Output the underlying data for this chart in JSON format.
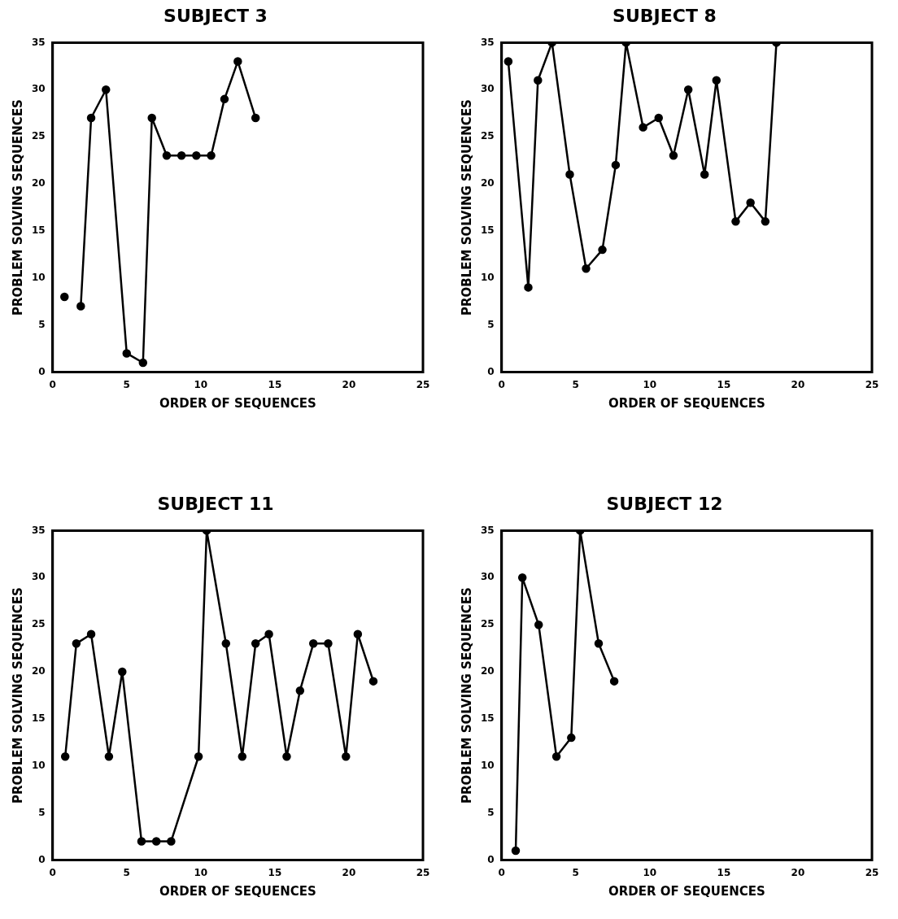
{
  "chart_data": [
    {
      "type": "line",
      "title": "SUBJECT 3",
      "xlabel": "ORDER OF SEQUENCES",
      "ylabel": "PROBLEM SOLVING SEQUENCES",
      "xlim": [
        0,
        25
      ],
      "xticks": [
        0,
        5,
        10,
        15,
        20,
        25
      ],
      "ylim": [
        0,
        35
      ],
      "yticks": [
        0,
        5,
        10,
        15,
        20,
        25,
        30,
        35
      ],
      "grid": false,
      "legend": false,
      "marker": "circle",
      "line_style": "solid",
      "series": [
        {
          "type": "scatter",
          "color": "#000000",
          "x": [
            0.8
          ],
          "values": [
            8
          ]
        },
        {
          "color": "#000000",
          "x": [
            1.9,
            2.6,
            3.6,
            5,
            6.1,
            6.7,
            7.7,
            8.7,
            9.7,
            10.7,
            11.6,
            12.5,
            13.7
          ],
          "values": [
            7,
            27,
            30,
            2,
            1,
            27,
            23,
            23,
            23,
            23,
            29,
            33,
            27
          ]
        }
      ]
    },
    {
      "type": "line",
      "title": "SUBJECT 8",
      "xlabel": "ORDER OF SEQUENCES",
      "ylabel": "PROBLEM SOLVING SEQUENCES",
      "xlim": [
        0,
        25
      ],
      "xticks": [
        0,
        5,
        10,
        15,
        20,
        25
      ],
      "ylim": [
        0,
        35
      ],
      "yticks": [
        0,
        5,
        10,
        15,
        20,
        25,
        30,
        35
      ],
      "grid": false,
      "legend": false,
      "marker": "circle",
      "line_style": "solid",
      "series": [
        {
          "color": "#000000",
          "x": [
            0.45,
            1.8,
            2.45,
            3.4,
            4.6,
            5.7,
            6.8,
            7.7,
            8.4,
            9.55,
            10.6,
            11.6,
            12.6,
            13.7,
            14.5,
            15.8,
            16.8,
            17.8,
            18.55
          ],
          "values": [
            33,
            9,
            31,
            35,
            21,
            11,
            13,
            22,
            35,
            26,
            27,
            23,
            30,
            21,
            31,
            16,
            18,
            16,
            35
          ]
        }
      ]
    },
    {
      "type": "line",
      "title": "SUBJECT 11",
      "xlabel": "ORDER OF SEQUENCES",
      "ylabel": "PROBLEM SOLVING SEQUENCES",
      "xlim": [
        0,
        25
      ],
      "xticks": [
        0,
        5,
        10,
        15,
        20,
        25
      ],
      "ylim": [
        0,
        35
      ],
      "yticks": [
        0,
        5,
        10,
        15,
        20,
        25,
        30,
        35
      ],
      "grid": false,
      "legend": false,
      "marker": "circle",
      "line_style": "solid",
      "series": [
        {
          "color": "#000000",
          "x": [
            0.85,
            1.6,
            2.6,
            3.8,
            4.7,
            6.0,
            7.0,
            8.0,
            9.85,
            10.4,
            11.7,
            12.8,
            13.7,
            14.6,
            15.8,
            16.7,
            17.6,
            18.6,
            19.8,
            20.6,
            21.65
          ],
          "values": [
            11,
            23,
            24,
            11,
            20,
            2,
            2,
            2,
            11,
            35,
            23,
            11,
            23,
            24,
            11,
            18,
            23,
            23,
            11,
            24,
            19
          ]
        }
      ]
    },
    {
      "type": "line",
      "title": "SUBJECT 12",
      "xlabel": "ORDER OF SEQUENCES",
      "ylabel": "PROBLEM SOLVING SEQUENCES",
      "xlim": [
        0,
        25
      ],
      "xticks": [
        0,
        5,
        10,
        15,
        20,
        25
      ],
      "ylim": [
        0,
        35
      ],
      "yticks": [
        0,
        5,
        10,
        15,
        20,
        25,
        30,
        35
      ],
      "grid": false,
      "legend": false,
      "marker": "circle",
      "line_style": "solid",
      "series": [
        {
          "color": "#000000",
          "x": [
            0.95,
            1.4,
            2.5,
            3.7,
            4.7,
            5.3,
            6.55,
            7.6
          ],
          "values": [
            1,
            30,
            25,
            11,
            13,
            35,
            23,
            19
          ]
        }
      ]
    }
  ]
}
